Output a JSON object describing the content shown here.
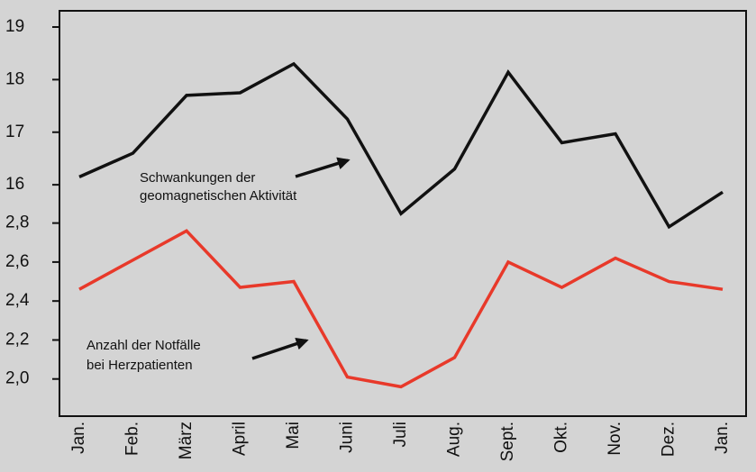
{
  "chart_data": {
    "type": "line",
    "categories": [
      "Jan.",
      "Feb.",
      "März",
      "April",
      "Mai",
      "Juni",
      "Juli",
      "Aug.",
      "Sept.",
      "Okt.",
      "Nov.",
      "Dez.",
      "Jan."
    ],
    "series": [
      {
        "name": "Schwankungen der geomagnetischen Aktivität",
        "color": "#111111",
        "axis": "y2",
        "values": [
          16.15,
          16.6,
          17.7,
          17.75,
          18.3,
          17.25,
          15.45,
          16.3,
          18.14,
          16.8,
          16.97,
          15.2,
          15.86
        ]
      },
      {
        "name": "Anzahl der Notfälle bei Herzpatienten",
        "color": "#e8392a",
        "axis": "y",
        "values": [
          2.46,
          2.61,
          2.76,
          2.47,
          2.5,
          2.01,
          1.96,
          2.11,
          2.6,
          2.47,
          2.62,
          2.5,
          2.46
        ]
      }
    ],
    "y2lim": [
      15,
      19.3
    ],
    "y2ticks": [
      16,
      17,
      18,
      19
    ],
    "ylim": [
      1.8,
      2.9
    ],
    "yticks": [
      {
        "value": 2.0,
        "label": "2,0"
      },
      {
        "value": 2.2,
        "label": "2,2"
      },
      {
        "value": 2.4,
        "label": "2,4"
      },
      {
        "value": 2.6,
        "label": "2,6"
      },
      {
        "value": 2.8,
        "label": "2,8"
      }
    ],
    "annotations": [
      [
        "Schwankungen der",
        "geomagnetischen Aktivität"
      ],
      [
        "Anzahl der Notfälle",
        "bei Herzpatienten"
      ]
    ]
  }
}
